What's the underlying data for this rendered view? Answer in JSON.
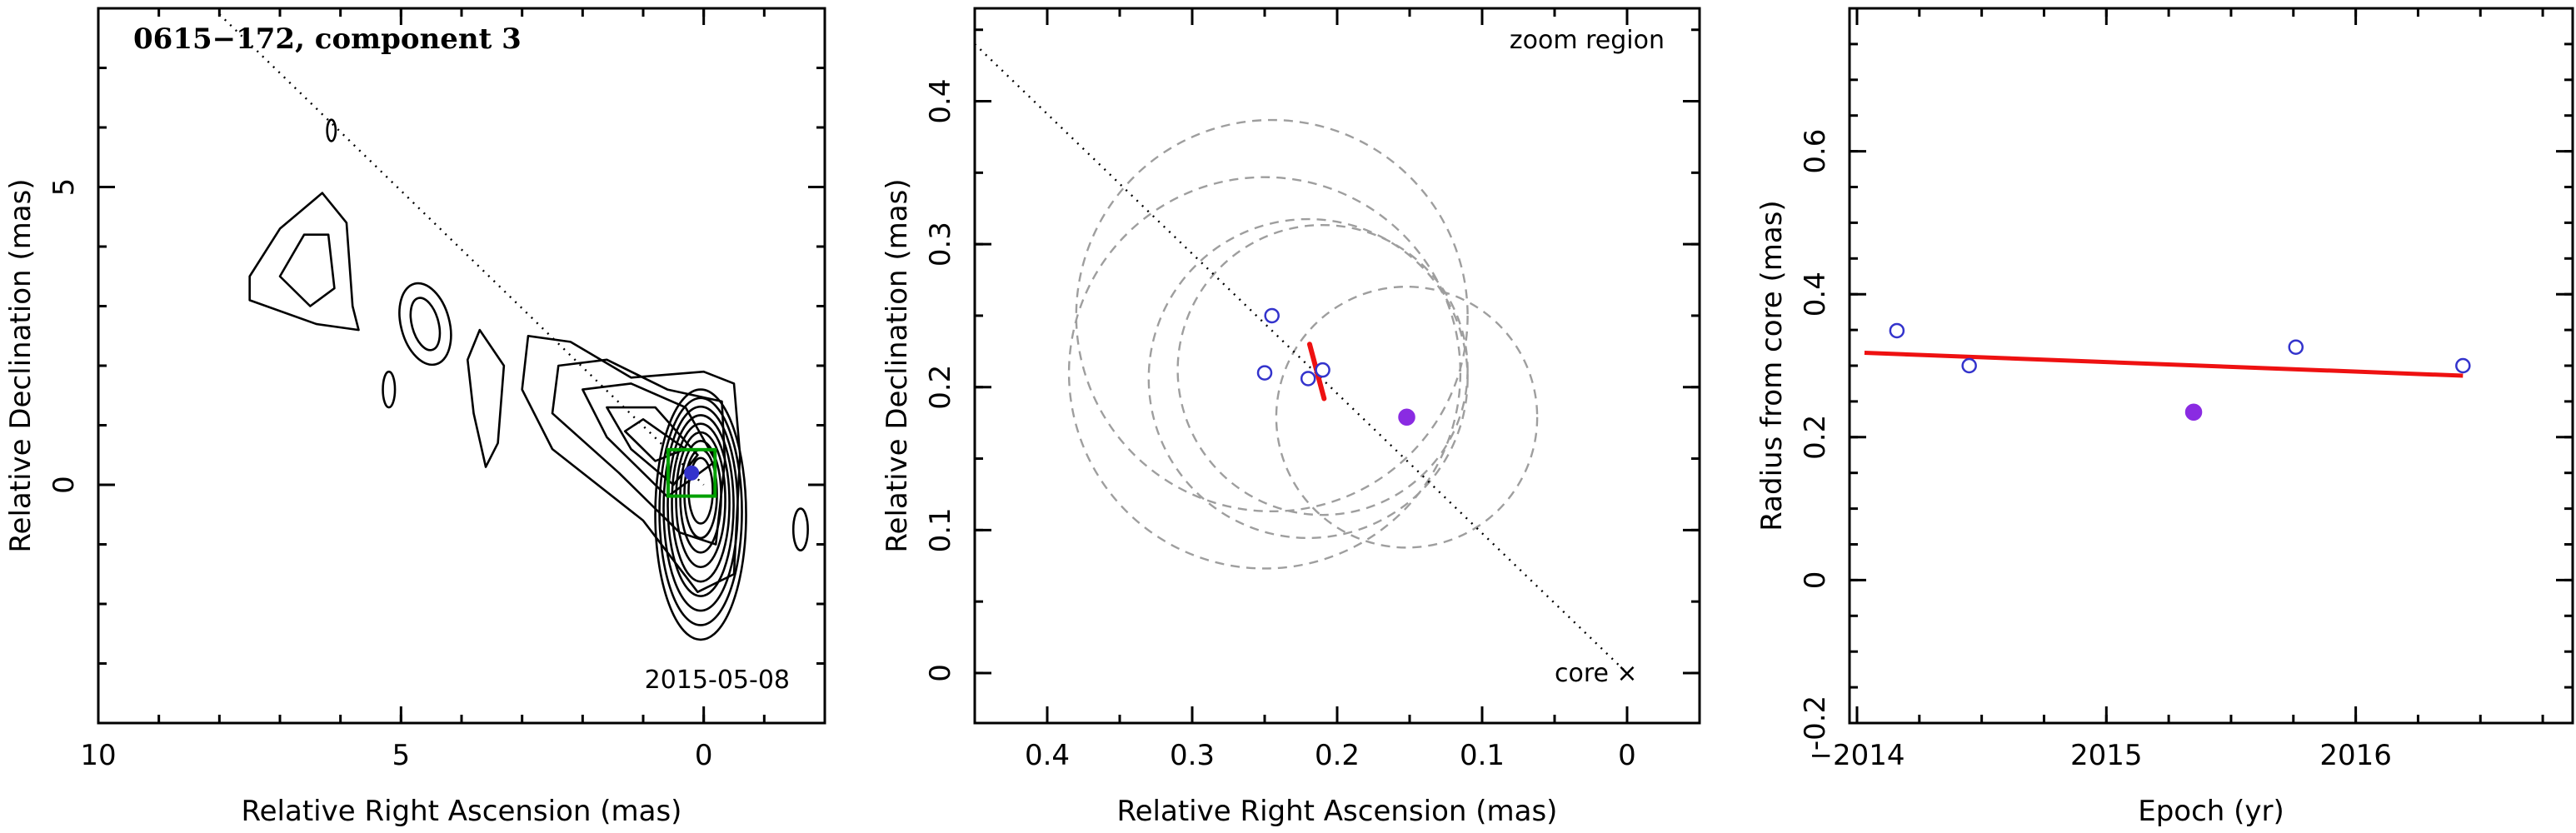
{
  "chart_data": [
    {
      "type": "contour",
      "title": "0615−172, component 3",
      "annotation": "2015-05-08",
      "xlabel": "Relative Right Ascension (mas)",
      "ylabel": "Relative Declination (mas)",
      "xlim": [
        10,
        -2
      ],
      "ylim": [
        -4,
        8
      ],
      "xticks": [
        10,
        5,
        0
      ],
      "yticks": [
        0,
        5
      ],
      "zoom_box": {
        "x": [
          0.45,
          -0.05
        ],
        "y": [
          -0.05,
          0.45
        ],
        "color": "#00a000"
      },
      "component_marker": {
        "x": 0.2,
        "y": 0.2,
        "color": "#3333cc"
      },
      "direction_line": {
        "x": [
          8.0,
          0.0
        ],
        "y": [
          7.9,
          0.0
        ]
      }
    },
    {
      "type": "scatter",
      "annotation": "zoom region",
      "core_label": "core",
      "xlabel": "Relative Right Ascension (mas)",
      "ylabel": "Relative Declination (mas)",
      "xlim": [
        0.45,
        -0.05
      ],
      "ylim": [
        -0.035,
        0.465
      ],
      "xticks": [
        0.4,
        0.3,
        0.2,
        0.1,
        0
      ],
      "yticks": [
        0,
        0.1,
        0.2,
        0.3,
        0.4
      ],
      "points": [
        {
          "x": 0.245,
          "y": 0.25,
          "filled": false
        },
        {
          "x": 0.25,
          "y": 0.21,
          "filled": false
        },
        {
          "x": 0.22,
          "y": 0.206,
          "filled": false
        },
        {
          "x": 0.21,
          "y": 0.212,
          "filled": false
        },
        {
          "x": 0.152,
          "y": 0.179,
          "filled": true
        }
      ],
      "point_colors": {
        "open": "#3333cc",
        "filled": "#8a2be2"
      },
      "circles": [
        {
          "x": 0.245,
          "y": 0.25,
          "r": 0.135
        },
        {
          "x": 0.25,
          "y": 0.21,
          "r": 0.135
        },
        {
          "x": 0.22,
          "y": 0.206,
          "r": 0.11
        },
        {
          "x": 0.21,
          "y": 0.212,
          "r": 0.1
        },
        {
          "x": 0.152,
          "y": 0.179,
          "r": 0.09
        }
      ],
      "mean_position_segment": {
        "x": [
          0.219,
          0.209
        ],
        "y": [
          0.23,
          0.192
        ],
        "color": "#ee1111"
      },
      "direction_line": {
        "x": [
          0.45,
          0.0
        ],
        "y": [
          0.44,
          0.0
        ]
      }
    },
    {
      "type": "scatter",
      "xlabel": "Epoch (yr)",
      "ylabel": "Radius from core (mas)",
      "xlim": [
        2013.97,
        2016.87
      ],
      "ylim": [
        -0.2,
        0.8
      ],
      "xticks": [
        2014,
        2015,
        2016
      ],
      "xtick_labels": [
        "−2014",
        "2015",
        "2016"
      ],
      "yticks": [
        -0.2,
        0,
        0.2,
        0.4,
        0.6
      ],
      "yminor_step": 0.05,
      "points": [
        {
          "x": 2014.16,
          "y": 0.349,
          "filled": false
        },
        {
          "x": 2014.45,
          "y": 0.3,
          "filled": false
        },
        {
          "x": 2015.35,
          "y": 0.235,
          "filled": true
        },
        {
          "x": 2015.76,
          "y": 0.326,
          "filled": false
        },
        {
          "x": 2016.43,
          "y": 0.3,
          "filled": false
        }
      ],
      "point_colors": {
        "open": "#3333cc",
        "filled": "#8a2be2"
      },
      "fit_line": {
        "x": [
          2014.03,
          2016.43
        ],
        "y": [
          0.318,
          0.286
        ],
        "color": "#ee1111"
      }
    }
  ]
}
